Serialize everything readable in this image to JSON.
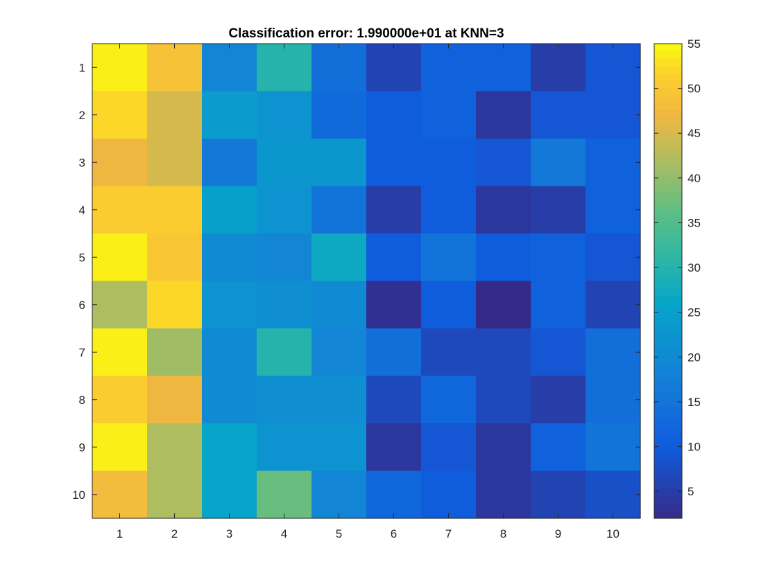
{
  "chart_data": {
    "type": "heatmap",
    "title": "Classification error: 1.990000e+01 at KNN=3",
    "xlabel": "",
    "ylabel": "",
    "x_ticks": [
      "1",
      "2",
      "3",
      "4",
      "5",
      "6",
      "7",
      "8",
      "9",
      "10"
    ],
    "y_ticks": [
      "1",
      "2",
      "3",
      "4",
      "5",
      "6",
      "7",
      "8",
      "9",
      "10"
    ],
    "y_direction": "top-to-bottom",
    "colormap": "parula",
    "clim": [
      2,
      55
    ],
    "colorbar_ticks": [
      5,
      10,
      15,
      20,
      25,
      30,
      35,
      40,
      45,
      50,
      55
    ],
    "colorbar_tick_labels": [
      "5",
      "10",
      "15",
      "20",
      "25",
      "30",
      "35",
      "40",
      "45",
      "50",
      "55"
    ],
    "values": [
      [
        54,
        49,
        19,
        30,
        14,
        6,
        11,
        11,
        5,
        9
      ],
      [
        52,
        45,
        24,
        22,
        13,
        10,
        11,
        4,
        9,
        9
      ],
      [
        47,
        45,
        16,
        23,
        23,
        10,
        10,
        9,
        16,
        11
      ],
      [
        51,
        51,
        25,
        22,
        15,
        5,
        10,
        4,
        5,
        11
      ],
      [
        54,
        50,
        20,
        19,
        27,
        10,
        15,
        10,
        11,
        9
      ],
      [
        42,
        52,
        22,
        21,
        20,
        3,
        10,
        2,
        11,
        6
      ],
      [
        54,
        41,
        20,
        30,
        19,
        14,
        7,
        7,
        9,
        14
      ],
      [
        51,
        47,
        20,
        21,
        21,
        7,
        12,
        7,
        5,
        14
      ],
      [
        54,
        42,
        26,
        22,
        22,
        4,
        9,
        4,
        11,
        15
      ],
      [
        48,
        42,
        26,
        37,
        19,
        12,
        10,
        4,
        6,
        8
      ]
    ],
    "grid": false,
    "legend": "none",
    "colorbar_position": "right"
  }
}
